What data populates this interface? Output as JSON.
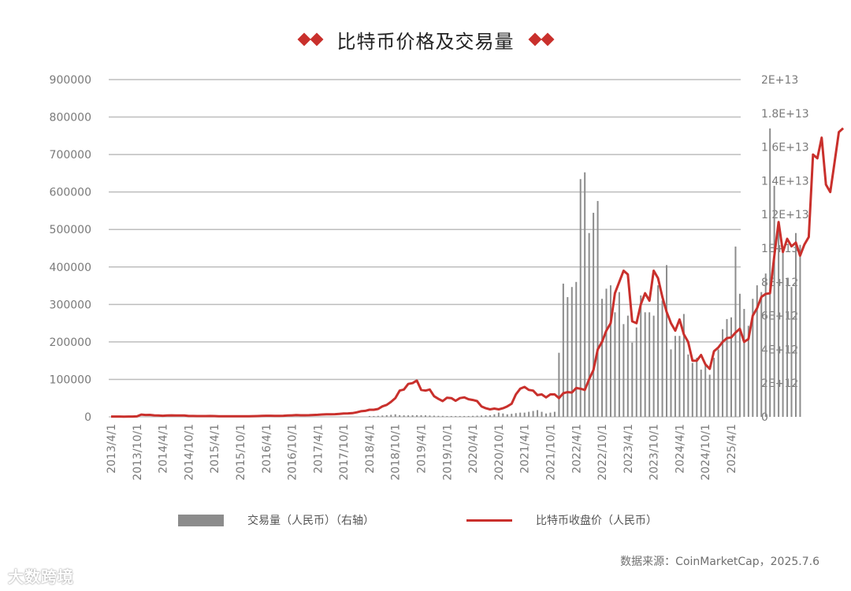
{
  "header": {
    "title": "比特币价格及交易量",
    "decoration_icon": "double-diamond-icon"
  },
  "legend": {
    "volume_label": "交易量（人民币）（右轴）",
    "price_label": "比特币收盘价（人民币）"
  },
  "footer": {
    "source": "数据来源：CoinMarketCap，2025.7.6",
    "watermark": "大数跨境"
  },
  "colors": {
    "price_line": "#c9302c",
    "volume_bar": "#8c8c8c",
    "gridline": "#bdbdbd",
    "accent": "#c9302c"
  },
  "chart_data": {
    "type": "bar+line",
    "title": "比特币价格及交易量",
    "xlabel": "",
    "ylabel_left": "比特币收盘价（人民币）",
    "ylabel_right": "交易量（人民币）",
    "left_ticks": [
      "0",
      "100000",
      "200000",
      "300000",
      "400000",
      "500000",
      "600000",
      "700000",
      "800000",
      "900000"
    ],
    "right_ticks": [
      "0",
      "2E+12",
      "4E+12",
      "6E+12",
      "8E+12",
      "1E+13",
      "1.2E+13",
      "1.4E+13",
      "1.6E+13",
      "1.8E+13",
      "2E+13"
    ],
    "ylim_left": [
      0,
      900000
    ],
    "ylim_right": [
      0,
      20000000000000
    ],
    "x_ticks": [
      "2013/4/1",
      "2013/10/1",
      "2014/4/1",
      "2014/10/1",
      "2015/4/1",
      "2015/10/1",
      "2016/4/1",
      "2016/10/1",
      "2017/4/1",
      "2017/10/1",
      "2018/4/1",
      "2018/10/1",
      "2019/4/1",
      "2019/10/1",
      "2020/4/1",
      "2020/10/1",
      "2021/4/1",
      "2021/10/1",
      "2022/4/1",
      "2022/10/1",
      "2023/4/1",
      "2023/10/1",
      "2024/4/1",
      "2024/10/1",
      "2025/4/1"
    ],
    "x_start": "2013/4",
    "frequency": "monthly",
    "grid": true,
    "legend_position": "bottom",
    "series": [
      {
        "name": "比特币收盘价（人民币）",
        "axis": "left",
        "type": "line",
        "values": [
          800,
          900,
          800,
          700,
          800,
          900,
          1200,
          6000,
          5000,
          5200,
          4000,
          3500,
          3000,
          3600,
          4000,
          3800,
          3700,
          3600,
          2400,
          2300,
          2200,
          2100,
          2200,
          2400,
          2200,
          1600,
          1500,
          1500,
          1500,
          1600,
          1700,
          1600,
          1500,
          1800,
          2000,
          2600,
          3000,
          3000,
          2500,
          2800,
          3000,
          3600,
          4000,
          4600,
          4300,
          4200,
          4400,
          5000,
          5500,
          6400,
          7000,
          6900,
          7200,
          8000,
          9000,
          9300,
          9800,
          12000,
          15000,
          16000,
          19000,
          19000,
          21000,
          28000,
          32000,
          40000,
          50000,
          70000,
          73000,
          88000,
          90000,
          97000,
          72000,
          70000,
          73000,
          55000,
          48000,
          42000,
          51000,
          50000,
          43000,
          50000,
          52000,
          47000,
          45000,
          42000,
          28000,
          23000,
          20000,
          22000,
          20000,
          23000,
          28000,
          35000,
          60000,
          75000,
          80000,
          72000,
          70000,
          58000,
          60000,
          52000,
          60000,
          60000,
          50000,
          63000,
          66000,
          65000,
          77000,
          75000,
          72000,
          100000,
          125000,
          180000,
          200000,
          230000,
          250000,
          330000,
          360000,
          390000,
          380000,
          255000,
          250000,
          300000,
          330000,
          310000,
          390000,
          370000,
          320000,
          280000,
          250000,
          230000,
          260000,
          220000,
          200000,
          150000,
          150000,
          165000,
          140000,
          128000,
          175000,
          185000,
          200000,
          210000,
          212000,
          225000,
          235000,
          200000,
          208000,
          270000,
          290000,
          320000,
          328000,
          330000,
          430000,
          520000,
          440000,
          475000,
          455000,
          465000,
          430000,
          460000,
          480000,
          700000,
          690000,
          745000,
          620000,
          600000,
          680000,
          760000,
          770000
        ]
      },
      {
        "name": "交易量（人民币）（右轴）",
        "axis": "right",
        "type": "bar",
        "values": [
          0,
          0,
          0,
          0,
          0,
          0,
          0,
          0,
          0,
          0,
          0,
          0,
          0,
          0,
          0,
          0,
          0,
          0,
          0,
          0,
          0,
          0,
          0,
          0,
          0,
          0,
          0,
          0,
          0,
          0,
          0,
          0,
          0,
          0,
          0,
          0,
          0,
          0,
          0,
          0,
          0,
          0,
          0,
          0,
          0,
          0,
          0,
          0,
          0,
          0,
          0,
          0,
          0,
          0,
          0,
          0,
          0,
          0,
          0,
          0,
          50000000000,
          50000000000,
          60000000000,
          80000000000,
          100000000000,
          120000000000,
          150000000000,
          100000000000,
          90000000000,
          90000000000,
          100000000000,
          100000000000,
          100000000000,
          90000000000,
          80000000000,
          70000000000,
          60000000000,
          60000000000,
          50000000000,
          50000000000,
          50000000000,
          50000000000,
          50000000000,
          50000000000,
          60000000000,
          70000000000,
          80000000000,
          90000000000,
          100000000000,
          150000000000,
          250000000000,
          200000000000,
          150000000000,
          180000000000,
          220000000000,
          250000000000,
          250000000000,
          300000000000,
          350000000000,
          400000000000,
          300000000000,
          200000000000,
          250000000000,
          300000000000,
          3800000000000,
          7900000000000,
          7100000000000,
          7700000000000,
          8000000000000,
          14100000000000,
          14500000000000,
          10900000000000,
          12100000000000,
          12800000000000,
          7000000000000,
          7600000000000,
          7800000000000,
          6200000000000,
          7400000000000,
          5500000000000,
          6000000000000,
          4400000000000,
          5300000000000,
          7200000000000,
          6200000000000,
          6200000000000,
          6000000000000,
          7800000000000,
          6900000000000,
          9000000000000,
          4000000000000,
          4800000000000,
          4800000000000,
          6100000000000,
          3700000000000,
          3200000000000,
          3500000000000,
          2800000000000,
          3200000000000,
          2500000000000,
          3500000000000,
          4000000000000,
          5200000000000,
          5800000000000,
          5900000000000,
          10100000000000,
          7300000000000,
          6400000000000,
          5400000000000,
          7000000000000,
          7800000000000,
          7400000000000,
          8500000000000,
          17100000000000,
          13700000000000,
          11600000000000,
          9800000000000,
          8200000000000,
          7700000000000,
          10900000000000,
          10200000000000
        ]
      }
    ]
  }
}
